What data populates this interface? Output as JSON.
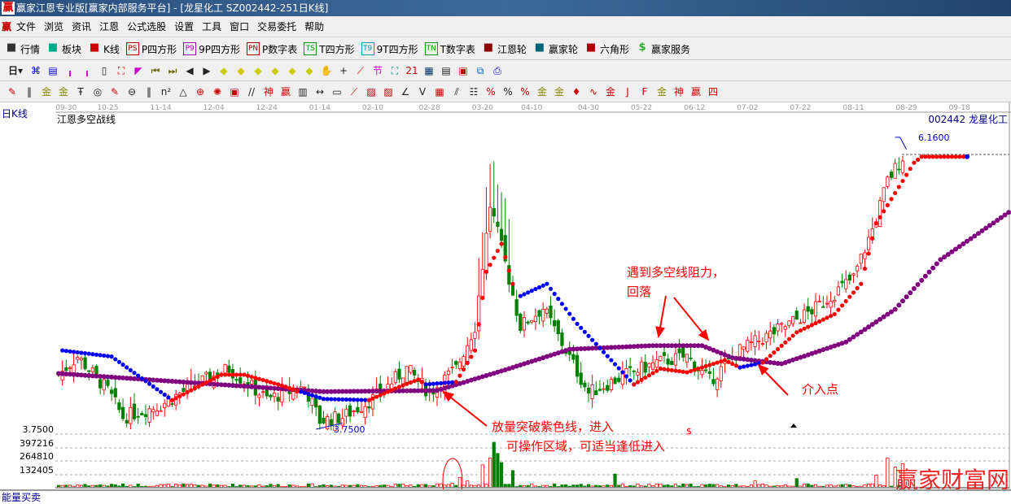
{
  "window": {
    "title": "赢家江恩专业版[赢家内部服务平台] - [龙星化工  SZ002442-251日K线]",
    "logo": "赢"
  },
  "menu": [
    "文件",
    "浏览",
    "资讯",
    "江恩",
    "公式选股",
    "设置",
    "工具",
    "窗口",
    "交易委托",
    "帮助"
  ],
  "toolbar1": [
    {
      "icon": "grid-icon",
      "label": "行情"
    },
    {
      "icon": "blocks-icon",
      "label": "板块"
    },
    {
      "icon": "candles-icon",
      "label": "K线"
    },
    {
      "icon": "ps-icon",
      "badge": "PS",
      "label": "P四方形"
    },
    {
      "icon": "p9-icon",
      "badge": "P9",
      "label": "9P四方形"
    },
    {
      "icon": "pn-icon",
      "badge": "PN",
      "label": "P数字表"
    },
    {
      "icon": "ts-icon",
      "badge": "TS",
      "label": "T四方形"
    },
    {
      "icon": "t9-icon",
      "badge": "T9",
      "label": "9T四方形"
    },
    {
      "icon": "tn-icon",
      "badge": "TN",
      "label": "T数字表"
    },
    {
      "icon": "gann-wheel-icon",
      "label": "江恩轮"
    },
    {
      "icon": "big-wheel-icon",
      "label": "赢家轮"
    },
    {
      "icon": "hexagon-icon",
      "label": "六角形"
    },
    {
      "icon": "dollar-icon",
      "label": "赢家服务"
    }
  ],
  "period_select": "日",
  "chart": {
    "period_label": "日K线",
    "indicator_name": "江恩多空战线",
    "stock": "002442 龙星化工",
    "high_label": "6.1600",
    "low_label": "3.7500",
    "price_axis_label": "3.7500",
    "volume_axis": [
      "397216",
      "264810",
      "132405"
    ],
    "date_ticks": [
      [
        "09-30",
        2
      ],
      [
        "10-25",
        13
      ],
      [
        "11-14",
        27
      ],
      [
        "12-04",
        41
      ],
      [
        "12-24",
        55
      ],
      [
        "01-14",
        69
      ],
      [
        "02-10",
        83
      ],
      [
        "02-28",
        98
      ],
      [
        "03-20",
        112
      ],
      [
        "04-10",
        125
      ],
      [
        "04-30",
        140
      ],
      [
        "05-22",
        154
      ],
      [
        "06-12",
        168
      ],
      [
        "07-02",
        182
      ],
      [
        "07-22",
        196
      ],
      [
        "08-11",
        210
      ],
      [
        "08-29",
        224
      ],
      [
        "09-18",
        238
      ]
    ],
    "bars": 251,
    "price_path": [
      [
        0,
        4.2
      ],
      [
        5,
        4.35
      ],
      [
        13,
        4.07
      ],
      [
        17,
        3.85
      ],
      [
        27,
        3.95
      ],
      [
        35,
        4.1
      ],
      [
        45,
        4.25
      ],
      [
        55,
        4.0
      ],
      [
        65,
        4.1
      ],
      [
        69,
        3.82
      ],
      [
        75,
        3.85
      ],
      [
        83,
        4.0
      ],
      [
        92,
        4.25
      ],
      [
        98,
        4.05
      ],
      [
        105,
        4.25
      ],
      [
        110,
        4.6
      ],
      [
        114,
        5.6
      ],
      [
        117,
        5.25
      ],
      [
        122,
        4.6
      ],
      [
        128,
        4.75
      ],
      [
        134,
        4.4
      ],
      [
        140,
        4.05
      ],
      [
        150,
        4.2
      ],
      [
        158,
        4.3
      ],
      [
        166,
        4.35
      ],
      [
        172,
        4.15
      ],
      [
        180,
        4.4
      ],
      [
        192,
        4.6
      ],
      [
        200,
        4.75
      ],
      [
        210,
        5.0
      ],
      [
        215,
        5.4
      ],
      [
        219,
        5.8
      ],
      [
        223,
        6.0
      ]
    ],
    "purple_line": [
      [
        0,
        4.21
      ],
      [
        28,
        4.15
      ],
      [
        70,
        4.06
      ],
      [
        100,
        4.07
      ],
      [
        118,
        4.24
      ],
      [
        135,
        4.41
      ],
      [
        157,
        4.44
      ],
      [
        170,
        4.44
      ],
      [
        178,
        4.34
      ],
      [
        191,
        4.29
      ],
      [
        208,
        4.47
      ],
      [
        221,
        4.74
      ],
      [
        233,
        5.15
      ],
      [
        251,
        5.54
      ]
    ],
    "stop_line": [
      {
        "color": "#0000ff",
        "points": [
          [
            1,
            4.4
          ],
          [
            14,
            4.35
          ],
          [
            30,
            3.99
          ]
        ]
      },
      {
        "color": "#ff0000",
        "points": [
          [
            30,
            3.99
          ],
          [
            43,
            4.2
          ],
          [
            49,
            4.2
          ],
          [
            58,
            4.12
          ],
          [
            64,
            4.06
          ]
        ]
      },
      {
        "color": "#0000ff",
        "points": [
          [
            64,
            4.06
          ],
          [
            70,
            4.0
          ],
          [
            82,
            3.99
          ]
        ]
      },
      {
        "color": "#ff0000",
        "points": [
          [
            82,
            3.99
          ],
          [
            90,
            4.1
          ],
          [
            95,
            4.16
          ],
          [
            97,
            4.12
          ]
        ]
      },
      {
        "color": "#0000ff",
        "points": [
          [
            97,
            4.12
          ],
          [
            105,
            4.14
          ]
        ]
      },
      {
        "color": "#ff0000",
        "points": [
          [
            105,
            4.14
          ],
          [
            110,
            4.4
          ],
          [
            113,
            5.05
          ],
          [
            117,
            5.28
          ],
          [
            120,
            4.95
          ]
        ]
      },
      {
        "color": "#0000ff",
        "points": [
          [
            122,
            4.85
          ],
          [
            129,
            4.95
          ],
          [
            137,
            4.62
          ],
          [
            152,
            4.12
          ]
        ]
      },
      {
        "color": "#ff0000",
        "points": [
          [
            152,
            4.12
          ],
          [
            159,
            4.25
          ],
          [
            166,
            4.22
          ],
          [
            176,
            4.32
          ],
          [
            180,
            4.26
          ]
        ]
      },
      {
        "color": "#0000ff",
        "points": [
          [
            180,
            4.26
          ],
          [
            186,
            4.3
          ]
        ]
      },
      {
        "color": "#ff0000",
        "points": [
          [
            186,
            4.3
          ],
          [
            195,
            4.55
          ],
          [
            205,
            4.7
          ],
          [
            212,
            4.95
          ],
          [
            216,
            5.45
          ],
          [
            221,
            5.7
          ],
          [
            226,
            5.95
          ],
          [
            228,
            6.0
          ],
          [
            240,
            6.0
          ]
        ]
      }
    ],
    "final_dot_color": "#0000ff",
    "volume_max": 397216,
    "volume_spikes": [
      [
        104,
        40000
      ],
      [
        106,
        90000
      ],
      [
        108,
        60000
      ],
      [
        112,
        200000
      ],
      [
        114,
        260000
      ],
      [
        115,
        397216
      ],
      [
        116,
        300000
      ],
      [
        117,
        220000
      ],
      [
        120,
        150000
      ],
      [
        147,
        120000
      ],
      [
        184,
        60000
      ],
      [
        195,
        80000
      ],
      [
        216,
        110000
      ],
      [
        219,
        260000
      ],
      [
        221,
        180000
      ],
      [
        223,
        210000
      ],
      [
        225,
        230000
      ]
    ],
    "volume_base": 25000,
    "colors": {
      "up": "#ff0000",
      "down": "#008000",
      "purple": "#800080",
      "annotation": "#ff0000"
    },
    "annotations": {
      "resistance": "遇到多空线阻力，",
      "resistance2": "回落",
      "entry": "介入点",
      "breakout1": "放量突破紫色线，进入",
      "breakout2": "可操作区域，可适当逢低进入",
      "dollar": "$"
    },
    "indicator_footer": "能量买卖",
    "watermark": "赢家财富网"
  }
}
